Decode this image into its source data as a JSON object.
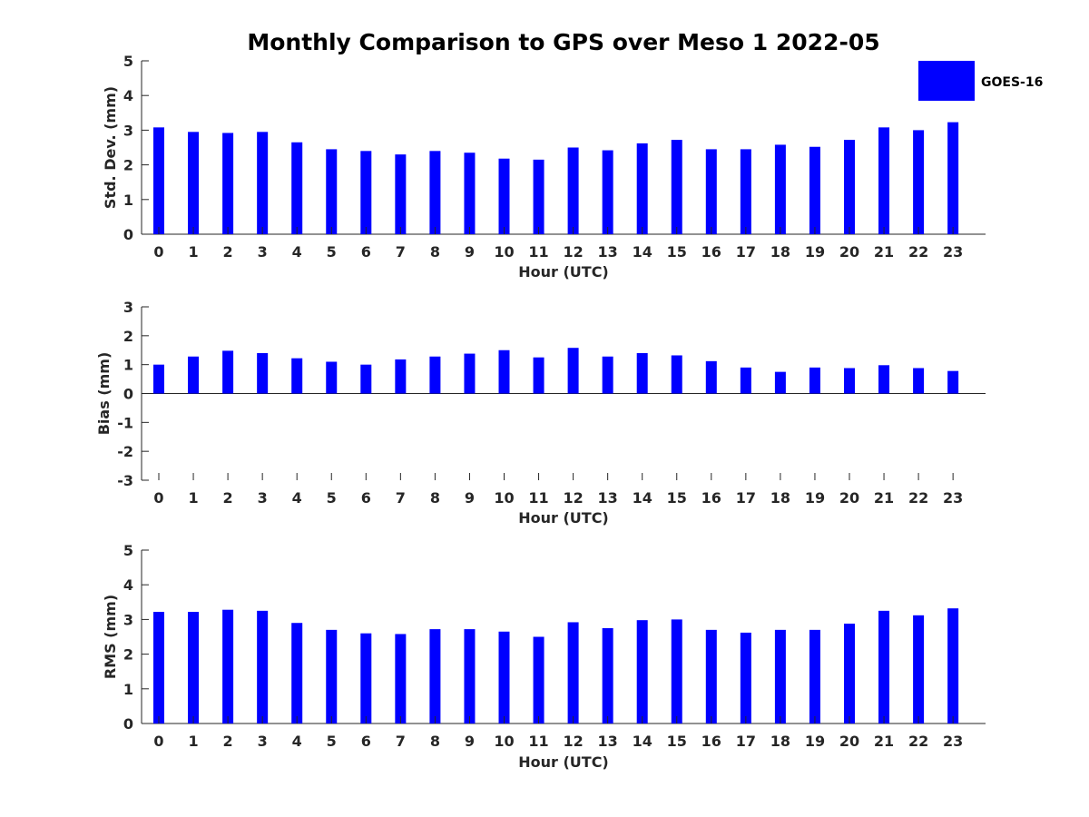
{
  "chart_data": {
    "type": "bar",
    "title": "Monthly Comparison to GPS over Meso 1 2022-05",
    "legend": {
      "position": "top-right",
      "entries": [
        "GOES-16"
      ]
    },
    "series_color": "#0000ff",
    "categories": [
      "0",
      "1",
      "2",
      "3",
      "4",
      "5",
      "6",
      "7",
      "8",
      "9",
      "10",
      "11",
      "12",
      "13",
      "14",
      "15",
      "16",
      "17",
      "18",
      "19",
      "20",
      "21",
      "22",
      "23"
    ],
    "panels": [
      {
        "id": "std",
        "xlabel": "Hour (UTC)",
        "ylabel": "Std. Dev. (mm)",
        "ylim": [
          0,
          5
        ],
        "yticks": [
          "0",
          "1",
          "2",
          "3",
          "4",
          "5"
        ],
        "series": [
          {
            "name": "GOES-16",
            "values": [
              3.08,
              2.95,
              2.92,
              2.95,
              2.65,
              2.45,
              2.4,
              2.3,
              2.4,
              2.35,
              2.18,
              2.15,
              2.5,
              2.42,
              2.62,
              2.72,
              2.45,
              2.45,
              2.58,
              2.52,
              2.72,
              3.08,
              3.0,
              3.23
            ]
          }
        ]
      },
      {
        "id": "bias",
        "xlabel": "Hour (UTC)",
        "ylabel": "Bias (mm)",
        "ylim": [
          -3,
          3
        ],
        "yticks": [
          "-3",
          "-2",
          "-1",
          "0",
          "1",
          "2",
          "3"
        ],
        "series": [
          {
            "name": "GOES-16",
            "values": [
              1.0,
              1.28,
              1.48,
              1.4,
              1.22,
              1.1,
              1.0,
              1.18,
              1.28,
              1.38,
              1.5,
              1.25,
              1.58,
              1.28,
              1.4,
              1.32,
              1.12,
              0.9,
              0.75,
              0.9,
              0.88,
              0.98,
              0.88,
              0.78
            ]
          }
        ]
      },
      {
        "id": "rms",
        "xlabel": "Hour (UTC)",
        "ylabel": "RMS (mm)",
        "ylim": [
          0,
          5
        ],
        "yticks": [
          "0",
          "1",
          "2",
          "3",
          "4",
          "5"
        ],
        "series": [
          {
            "name": "GOES-16",
            "values": [
              3.22,
              3.22,
              3.28,
              3.25,
              2.9,
              2.7,
              2.6,
              2.58,
              2.72,
              2.72,
              2.65,
              2.5,
              2.92,
              2.75,
              2.98,
              3.0,
              2.7,
              2.62,
              2.7,
              2.7,
              2.88,
              3.25,
              3.12,
              3.32
            ]
          }
        ]
      }
    ]
  }
}
